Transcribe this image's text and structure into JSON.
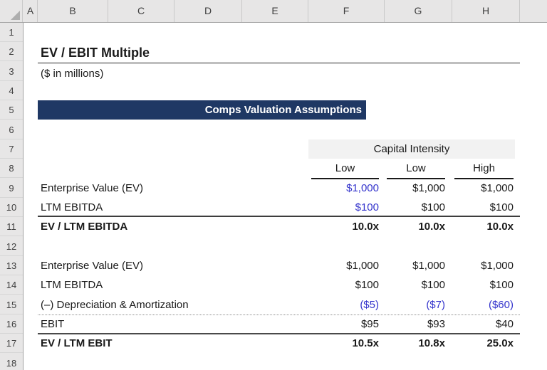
{
  "colors": {
    "banner_bg": "#1F3864",
    "banner_text": "#FFFFFF",
    "input_blue": "#3333CC",
    "header_bg": "#E7E6E6",
    "band_bg": "#F2F2F2"
  },
  "sheet": {
    "column_headers": [
      "A",
      "B",
      "C",
      "D",
      "E",
      "F",
      "G",
      "H"
    ],
    "row_headers": [
      "1",
      "2",
      "3",
      "4",
      "5",
      "6",
      "7",
      "8",
      "9",
      "10",
      "11",
      "12",
      "13",
      "14",
      "15",
      "16",
      "17",
      "18"
    ]
  },
  "content": {
    "title": "EV / EBIT Multiple",
    "subtitle": "($ in millions)",
    "banner": "Comps Valuation Assumptions",
    "group_header": "Capital Intensity",
    "column_labels": [
      "Low",
      "Low",
      "High"
    ],
    "rows": [
      {
        "row": 9,
        "label": "Enterprise Value (EV)",
        "values": [
          "$1,000",
          "$1,000",
          "$1,000"
        ],
        "blue": [
          true,
          false,
          false
        ],
        "bold": false
      },
      {
        "row": 10,
        "label": "LTM EBITDA",
        "values": [
          "$100",
          "$100",
          "$100"
        ],
        "blue": [
          true,
          false,
          false
        ],
        "bold": false
      },
      {
        "row": 11,
        "label": "EV / LTM EBITDA",
        "values": [
          "10.0x",
          "10.0x",
          "10.0x"
        ],
        "blue": [
          false,
          false,
          false
        ],
        "bold": true,
        "border_top": "solid"
      },
      {
        "row": 13,
        "label": "Enterprise Value (EV)",
        "values": [
          "$1,000",
          "$1,000",
          "$1,000"
        ],
        "blue": [
          false,
          false,
          false
        ],
        "bold": false
      },
      {
        "row": 14,
        "label": "LTM EBITDA",
        "values": [
          "$100",
          "$100",
          "$100"
        ],
        "blue": [
          false,
          false,
          false
        ],
        "bold": false
      },
      {
        "row": 15,
        "label": "(–) Depreciation & Amortization",
        "values": [
          "($5)",
          "($7)",
          "($60)"
        ],
        "blue": [
          true,
          true,
          true
        ],
        "bold": false,
        "border_bottom": "dotted"
      },
      {
        "row": 16,
        "label": "EBIT",
        "values": [
          "$95",
          "$93",
          "$40"
        ],
        "blue": [
          false,
          false,
          false
        ],
        "bold": false,
        "border_bottom": "solid"
      },
      {
        "row": 17,
        "label": "EV / LTM EBIT",
        "values": [
          "10.5x",
          "10.8x",
          "25.0x"
        ],
        "blue": [
          false,
          false,
          false
        ],
        "bold": true
      }
    ]
  }
}
